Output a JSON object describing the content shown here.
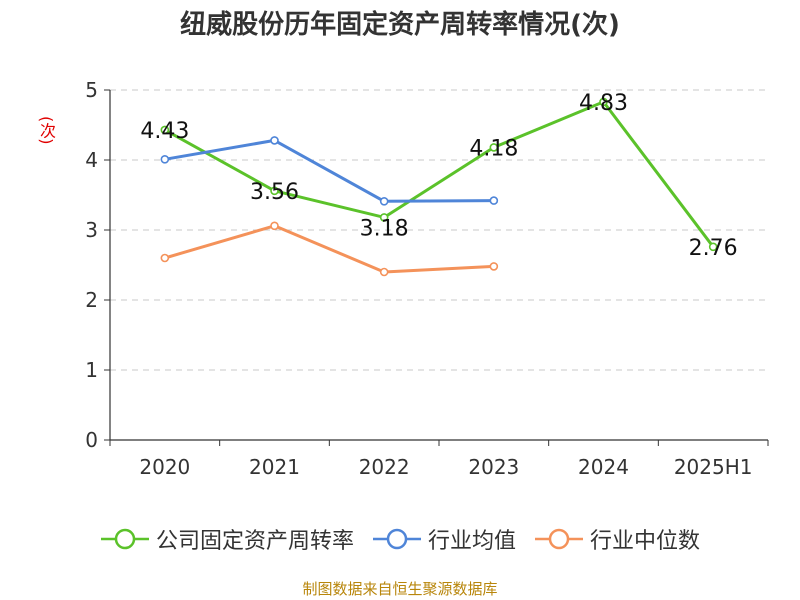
{
  "chart_data": {
    "type": "line",
    "title": "纽威股份历年固定资产周转率情况(次)",
    "ylabel": "(次)",
    "categories": [
      "2020",
      "2021",
      "2022",
      "2023",
      "2024",
      "2025H1"
    ],
    "ylim": [
      0,
      5
    ],
    "yticks": [
      0,
      1,
      2,
      3,
      4,
      5
    ],
    "grid": true,
    "legend_position": "bottom",
    "series": [
      {
        "name": "公司固定资产周转率",
        "color": "#5bc22a",
        "values": [
          4.43,
          3.56,
          3.18,
          4.18,
          4.83,
          2.76
        ],
        "labels": [
          "4.43",
          "3.56",
          "3.18",
          "4.18",
          "4.83",
          "2.76"
        ]
      },
      {
        "name": "行业均值",
        "color": "#4f85d8",
        "values": [
          4.01,
          4.28,
          3.41,
          3.42,
          null,
          null
        ]
      },
      {
        "name": "行业中位数",
        "color": "#f4925a",
        "values": [
          2.6,
          3.06,
          2.4,
          2.48,
          null,
          null
        ]
      }
    ]
  },
  "source": "制图数据来自恒生聚源数据库"
}
